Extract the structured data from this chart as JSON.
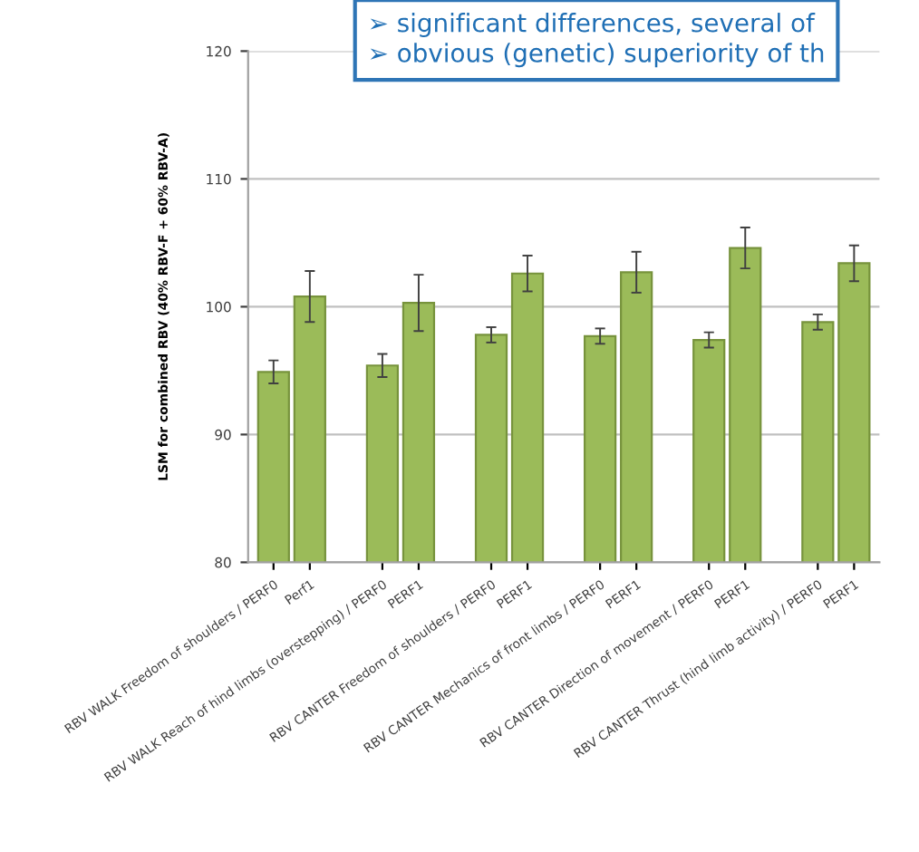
{
  "chart_data": {
    "type": "bar",
    "ylabel": "LSM for combined RBV (40% RBV-F + 60% RBV-A)",
    "categories": [
      "RBV WALK Freedom of shoulders / PERF0",
      "Perf1",
      "RBV WALK Reach of hind limbs (overstepping) / PERF0",
      "PERF1",
      "RBV CANTER Freedom of shoulders / PERF0",
      "PERF1",
      "RBV CANTER Mechanics of front limbs / PERF0",
      "PERF1",
      "RBV CANTER Direction of movement / PERF0",
      "PERF1",
      "RBV CANTER Thrust (hind limb activity) / PERF0",
      "PERF1"
    ],
    "values": [
      94.9,
      100.8,
      95.4,
      100.3,
      97.8,
      102.6,
      97.7,
      102.7,
      97.4,
      104.6,
      98.8,
      103.4
    ],
    "errors": [
      0.9,
      2.0,
      0.9,
      2.2,
      0.6,
      1.4,
      0.6,
      1.6,
      0.6,
      1.6,
      0.6,
      1.4
    ],
    "color": "#9bbb59",
    "ylim": [
      80,
      120
    ],
    "yticks": [
      80,
      90,
      100,
      110,
      120
    ],
    "grid": "y",
    "annotations": [
      "➢ significant differences, several of",
      "➢ obvious (genetic) superiority of th"
    ]
  }
}
